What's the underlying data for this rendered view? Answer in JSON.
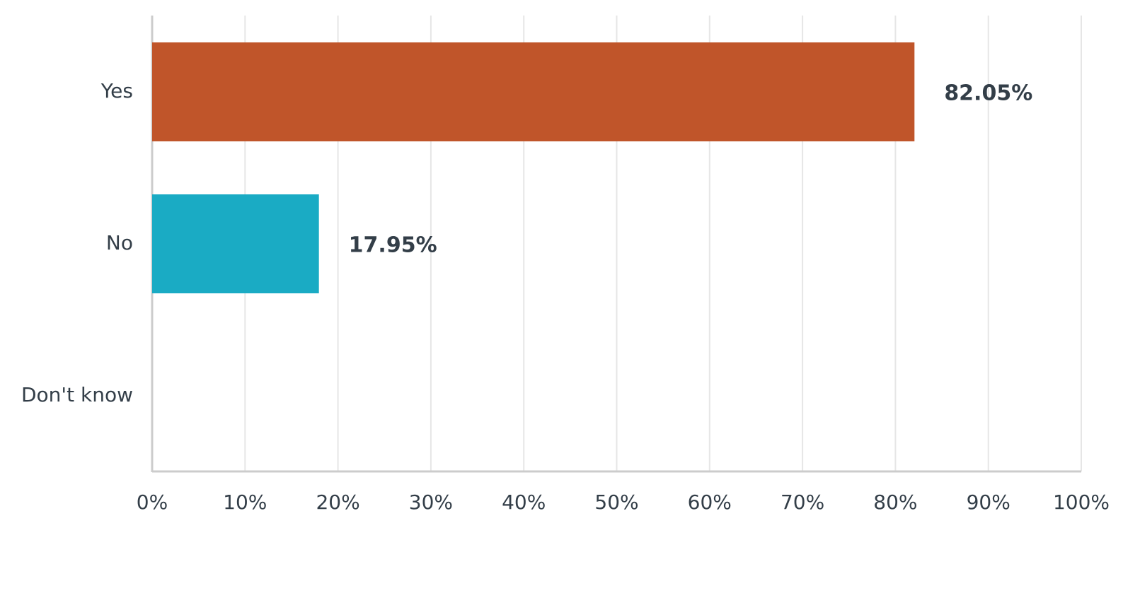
{
  "chart_data": {
    "type": "bar",
    "orientation": "horizontal",
    "categories": [
      "Yes",
      "No",
      "Don't know"
    ],
    "values": [
      82.05,
      17.95,
      0
    ],
    "value_labels": [
      "82.05%",
      "17.95%",
      null
    ],
    "colors": [
      "#c0552a",
      "#1aabc4",
      "#9d9d9d"
    ],
    "xlim": [
      0,
      100
    ],
    "xticks": [
      {
        "value": 0,
        "label": "0%"
      },
      {
        "value": 10,
        "label": "10%"
      },
      {
        "value": 20,
        "label": "20%"
      },
      {
        "value": 30,
        "label": "30%"
      },
      {
        "value": 40,
        "label": "40%"
      },
      {
        "value": 50,
        "label": "50%"
      },
      {
        "value": 60,
        "label": "60%"
      },
      {
        "value": 70,
        "label": "70%"
      },
      {
        "value": 80,
        "label": "80%"
      },
      {
        "value": 90,
        "label": "90%"
      },
      {
        "value": 100,
        "label": "100%"
      }
    ],
    "grid": true
  }
}
